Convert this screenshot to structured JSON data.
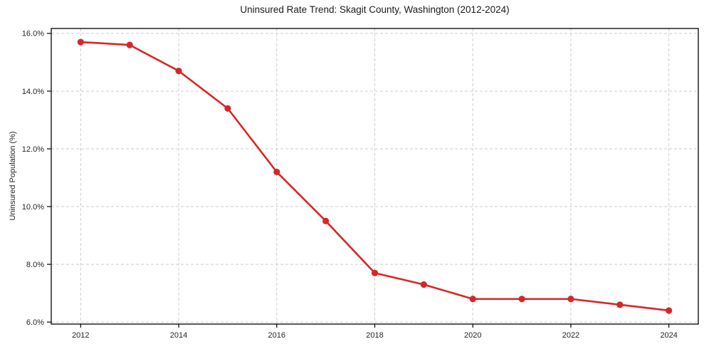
{
  "chart_data": {
    "type": "line",
    "title": "Uninsured Rate Trend: Skagit County, Washington (2012-2024)",
    "xlabel": "",
    "ylabel": "Uninsured Population (%)",
    "x": [
      2012,
      2013,
      2014,
      2015,
      2016,
      2017,
      2018,
      2019,
      2020,
      2021,
      2022,
      2023,
      2024
    ],
    "values": [
      15.7,
      15.6,
      14.7,
      13.4,
      11.2,
      9.5,
      7.7,
      7.3,
      6.8,
      6.8,
      6.8,
      6.6,
      6.4
    ],
    "xticks": {
      "values": [
        2012,
        2014,
        2016,
        2018,
        2020,
        2022,
        2024
      ],
      "labels": [
        "2012",
        "2014",
        "2016",
        "2018",
        "2020",
        "2022",
        "2024"
      ]
    },
    "yticks": {
      "values": [
        6,
        8,
        10,
        12,
        14,
        16
      ],
      "labels": [
        "6.0%",
        "8.0%",
        "10.0%",
        "12.0%",
        "14.0%",
        "16.0%"
      ]
    },
    "xlim": [
      2011.4,
      2024.6
    ],
    "ylim": [
      5.93,
      16.17
    ],
    "grid": true,
    "legend": false,
    "styles": {
      "line_color": "#d62728",
      "marker_color": "#d62728",
      "grid_color": "#cccccc",
      "axis_color": "#000000",
      "tick_text_color": "#262626",
      "background": "#ffffff"
    }
  }
}
